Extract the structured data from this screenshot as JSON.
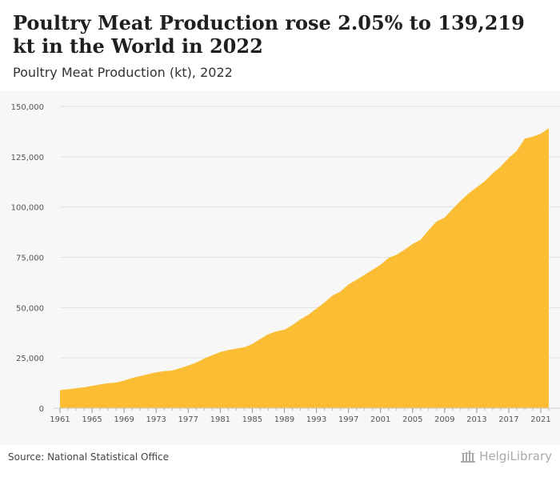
{
  "header": {
    "title": "Poultry Meat Production rose 2.05% to 139,219 kt in the World in 2022",
    "subtitle": "Poultry Meat Production (kt), 2022"
  },
  "footer": {
    "source": "Source: National Statistical Office",
    "brand": "HelgiLibrary"
  },
  "colors": {
    "area_fill": "#fbbd34",
    "grid": "#e2e2e2",
    "axis_text": "#555555"
  },
  "chart_data": {
    "type": "area",
    "title": "Poultry Meat Production rose 2.05% to 139,219 kt in the World in 2022",
    "subtitle": "Poultry Meat Production (kt), 2022",
    "xlabel": "",
    "ylabel": "",
    "ylim": [
      0,
      150000
    ],
    "xlim": [
      1961,
      2022
    ],
    "grid": true,
    "legend": "none",
    "y_ticks": [
      0,
      25000,
      50000,
      75000,
      100000,
      125000,
      150000
    ],
    "y_tick_labels": [
      "0",
      "25,000",
      "50,000",
      "75,000",
      "100,000",
      "125,000",
      "150,000"
    ],
    "x_ticks": [
      1961,
      1965,
      1969,
      1973,
      1977,
      1981,
      1985,
      1989,
      1993,
      1997,
      2001,
      2005,
      2009,
      2013,
      2017,
      2021
    ],
    "x_tick_labels": [
      "1961",
      "1965",
      "1969",
      "1973",
      "1977",
      "1981",
      "1985",
      "1989",
      "1993",
      "1997",
      "2001",
      "2005",
      "2009",
      "2013",
      "2017",
      "2021"
    ],
    "x": [
      1961,
      1962,
      1963,
      1964,
      1965,
      1966,
      1967,
      1968,
      1969,
      1970,
      1971,
      1972,
      1973,
      1974,
      1975,
      1976,
      1977,
      1978,
      1979,
      1980,
      1981,
      1982,
      1983,
      1984,
      1985,
      1986,
      1987,
      1988,
      1989,
      1990,
      1991,
      1992,
      1993,
      1994,
      1995,
      1996,
      1997,
      1998,
      1999,
      2000,
      2001,
      2002,
      2003,
      2004,
      2005,
      2006,
      2007,
      2008,
      2009,
      2010,
      2011,
      2012,
      2013,
      2014,
      2015,
      2016,
      2017,
      2018,
      2019,
      2020,
      2021,
      2022
    ],
    "values": [
      9000,
      9400,
      9900,
      10400,
      11100,
      11800,
      12400,
      12800,
      13700,
      15000,
      15900,
      16900,
      17800,
      18400,
      18700,
      19900,
      21200,
      22700,
      24700,
      26300,
      27900,
      28900,
      29600,
      30300,
      31900,
      34400,
      36800,
      38200,
      39000,
      41300,
      44100,
      46500,
      49500,
      52500,
      56000,
      58000,
      61500,
      63800,
      66300,
      68800,
      71300,
      74700,
      76300,
      78800,
      81600,
      83700,
      88600,
      92800,
      94800,
      99000,
      103100,
      106800,
      109800,
      112800,
      116800,
      120100,
      124400,
      127900,
      134000,
      135000,
      136400,
      139219
    ]
  }
}
